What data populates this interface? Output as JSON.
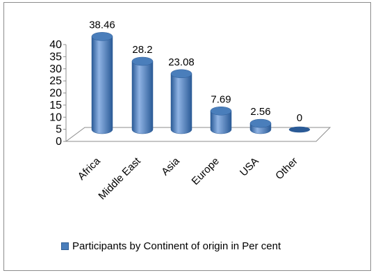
{
  "chart_data": {
    "type": "bar",
    "categories": [
      "Africa",
      "Middle East",
      "Asia",
      "Europe",
      "USA",
      "Other"
    ],
    "series": [
      {
        "name": "Participants by Continent of origin in Per cent",
        "values": [
          38.46,
          28.2,
          23.08,
          7.69,
          2.56,
          0
        ],
        "labels": [
          "38.46",
          "28.2",
          "23.08",
          "7.69",
          "2.56",
          "0"
        ]
      }
    ],
    "yticks": [
      "0",
      "5",
      "10",
      "15",
      "20",
      "25",
      "30",
      "35",
      "40"
    ],
    "ylim": [
      0,
      40
    ],
    "grid": false,
    "style": "3d-cylinder",
    "legend_position": "bottom",
    "colors": {
      "bar": "#4a7ebb",
      "bar_highlight": "#8fb3e4",
      "bar_shadow": "#2a5a96",
      "axis": "#8c8c8c"
    }
  },
  "legend": {
    "label": "Participants by Continent of origin in Per cent"
  }
}
